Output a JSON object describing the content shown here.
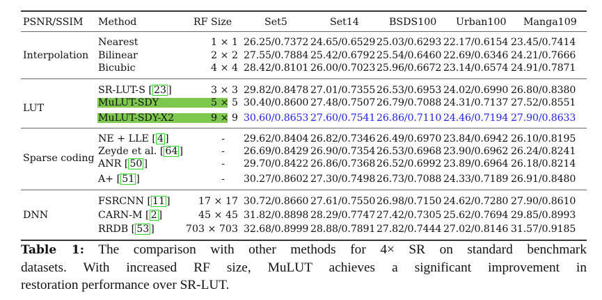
{
  "table": {
    "headers": [
      "PSNR/SSIM",
      "Method",
      "RF Size",
      "Set5",
      "Set14",
      "BSDS100",
      "Urban100",
      "Manga109"
    ],
    "groups": [
      {
        "name": "Interpolation",
        "rows": [
          {
            "method": "Nearest",
            "cite": "",
            "rf": "1 × 1",
            "values": [
              "26.25/0.7372",
              "24.65/0.6529",
              "25.03/0.6293",
              "22.17/0.6154",
              "23.45/0.7414"
            ]
          },
          {
            "method": "Bilinear",
            "cite": "",
            "rf": "2 × 2",
            "values": [
              "27.55/0.7884",
              "25.42/0.6792",
              "25.54/0.6460",
              "22.69/0.6346",
              "24.21/0.7666"
            ]
          },
          {
            "method": "Bicubic",
            "cite": "",
            "rf": "4 × 4",
            "values": [
              "28.42/0.8101",
              "26.00/0.7023",
              "25.96/0.6672",
              "23.14/0.6574",
              "24.91/0.7871"
            ]
          }
        ]
      },
      {
        "name": "LUT",
        "rows": [
          {
            "method": "SR-LUT-S",
            "cite": "23",
            "rf": "3 × 3",
            "values": [
              "29.82/0.8478",
              "27.01/0.7355",
              "26.53/0.6953",
              "24.02/0.6990",
              "26.80/0.8380"
            ]
          },
          {
            "method": "MuLUT-SDY",
            "cite": "",
            "rf": "5 × 5",
            "highlighted": true,
            "values": [
              "30.40/0.8600",
              "27.48/0.7507",
              "26.79/0.7088",
              "24.31/0.7137",
              "27.52/0.8551"
            ]
          },
          {
            "method": "MuLUT-SDY-X2",
            "cite": "",
            "rf": "9 × 9",
            "highlighted": true,
            "best": true,
            "values": [
              "30.60/0.8653",
              "27.60/0.7541",
              "26.86/0.7110",
              "24.46/0.7194",
              "27.90/0.8633"
            ]
          }
        ]
      },
      {
        "name": "Sparse coding",
        "rows": [
          {
            "method": "NE + LLE",
            "cite": "4",
            "rf": "-",
            "values": [
              "29.62/0.8404",
              "26.82/0.7346",
              "26.49/0.6970",
              "23.84/0.6942",
              "26.10/0.8195"
            ]
          },
          {
            "method": "Zeyde et al.",
            "cite": "64",
            "rf": "-",
            "values": [
              "26.69/0.8429",
              "26.90/0.7354",
              "26.53/0.6968",
              "23.90/0.6962",
              "26.24/0.8241"
            ]
          },
          {
            "method": "ANR",
            "cite": "50",
            "rf": "-",
            "values": [
              "29.70/0.8422",
              "26.86/0.7368",
              "26.52/0.6992",
              "23.89/0.6964",
              "26.18/0.8214"
            ]
          },
          {
            "method": "A+",
            "cite": "51",
            "rf": "-",
            "values": [
              "30.27/0.8602",
              "27.30/0.7498",
              "26.73/0.7088",
              "24.33/0.7189",
              "26.91/0.8480"
            ]
          }
        ]
      },
      {
        "name": "DNN",
        "rows": [
          {
            "method": "FSRCNN",
            "cite": "11",
            "rf": "17 × 17",
            "values": [
              "30.72/0.8660",
              "27.61/0.7550",
              "26.98/0.7150",
              "24.62/0.7280",
              "27.90/0.8610"
            ]
          },
          {
            "method": "CARN-M",
            "cite": "2",
            "rf": "45 × 45",
            "values": [
              "31.82/0.8898",
              "28.29/0.7747",
              "27.42/0.7305",
              "25.62/0.7694",
              "29.85/0.8993"
            ]
          },
          {
            "method": "RRDB",
            "cite": "53",
            "rf": "703 × 703",
            "values": [
              "32.68/0.8999",
              "28.88/0.7891",
              "27.82/0.7444",
              "27.02/0.8146",
              "31.57/0.9185"
            ]
          }
        ]
      }
    ]
  },
  "caption": {
    "label": "Table 1:",
    "lines": [
      "The comparison with other methods for 4× SR on standard benchmark",
      "datasets. With increased RF size, MuLUT achieves a significant improvement in",
      "restoration performance over SR-LUT."
    ]
  },
  "colors": {
    "best_text": "#1f1ff0",
    "highlight": "#7ec850",
    "cite_border": "#22dd22"
  }
}
